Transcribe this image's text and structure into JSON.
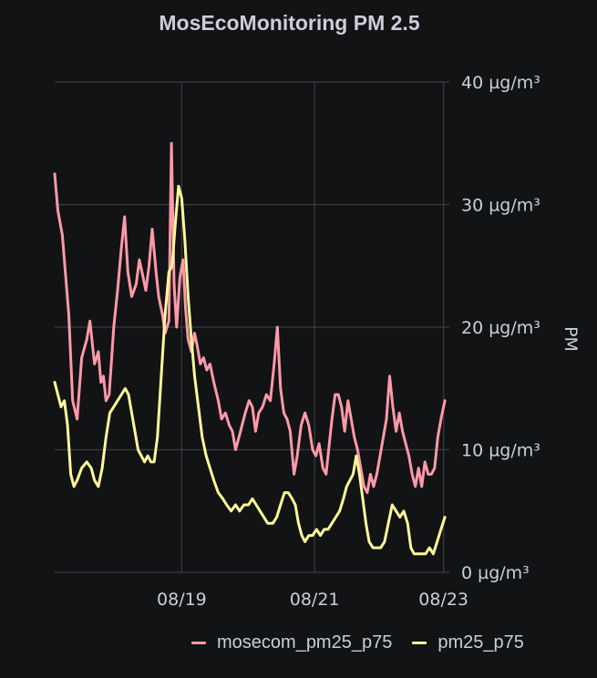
{
  "panel": {
    "title": "MosEcoMonitoring PM 2.5"
  },
  "chart_data": {
    "type": "line",
    "title": "MosEcoMonitoring PM 2.5",
    "xlabel": "",
    "ylabel": "PM",
    "ylim": [
      0,
      40
    ],
    "yunit": "µg/m³",
    "yticks": [
      "0 µg/m³",
      "10 µg/m³",
      "20 µg/m³",
      "30 µg/m³",
      "40 µg/m³"
    ],
    "xticks": [
      "08/19",
      "08/21",
      "08/23"
    ],
    "xrange_days": [
      "08/17",
      "08/23"
    ],
    "grid": true,
    "legend_position": "bottom-right",
    "series": [
      {
        "name": "mosecom_pm25_p75",
        "color": "#ff99a8",
        "points": [
          [
            0.0,
            32.5
          ],
          [
            0.05,
            29.5
          ],
          [
            0.12,
            27.5
          ],
          [
            0.22,
            21.0
          ],
          [
            0.28,
            14.0
          ],
          [
            0.35,
            12.5
          ],
          [
            0.42,
            17.5
          ],
          [
            0.5,
            19.0
          ],
          [
            0.55,
            20.5
          ],
          [
            0.62,
            17.0
          ],
          [
            0.68,
            18.0
          ],
          [
            0.72,
            15.5
          ],
          [
            0.76,
            16.0
          ],
          [
            0.8,
            14.0
          ],
          [
            0.85,
            14.5
          ],
          [
            0.92,
            20.0
          ],
          [
            0.98,
            23.0
          ],
          [
            1.04,
            26.5
          ],
          [
            1.09,
            29.0
          ],
          [
            1.14,
            24.5
          ],
          [
            1.2,
            22.5
          ],
          [
            1.27,
            23.5
          ],
          [
            1.32,
            25.5
          ],
          [
            1.38,
            24.0
          ],
          [
            1.42,
            23.0
          ],
          [
            1.47,
            25.0
          ],
          [
            1.52,
            28.0
          ],
          [
            1.58,
            24.5
          ],
          [
            1.62,
            22.5
          ],
          [
            1.68,
            21.0
          ],
          [
            1.72,
            19.5
          ],
          [
            1.78,
            20.5
          ],
          [
            1.82,
            35.0
          ],
          [
            1.86,
            23.5
          ],
          [
            1.9,
            20.0
          ],
          [
            1.95,
            24.0
          ],
          [
            2.0,
            25.5
          ],
          [
            2.04,
            21.5
          ],
          [
            2.08,
            19.0
          ],
          [
            2.13,
            18.0
          ],
          [
            2.18,
            19.5
          ],
          [
            2.22,
            18.5
          ],
          [
            2.27,
            17.0
          ],
          [
            2.32,
            17.5
          ],
          [
            2.37,
            16.5
          ],
          [
            2.42,
            17.0
          ],
          [
            2.48,
            15.5
          ],
          [
            2.55,
            14.0
          ],
          [
            2.6,
            12.5
          ],
          [
            2.66,
            13.0
          ],
          [
            2.72,
            12.0
          ],
          [
            2.77,
            11.5
          ],
          [
            2.82,
            10.0
          ],
          [
            2.87,
            11.0
          ],
          [
            2.92,
            12.0
          ],
          [
            2.97,
            13.0
          ],
          [
            3.03,
            14.0
          ],
          [
            3.08,
            13.5
          ],
          [
            3.13,
            11.5
          ],
          [
            3.18,
            13.0
          ],
          [
            3.24,
            13.5
          ],
          [
            3.3,
            14.5
          ],
          [
            3.36,
            14.0
          ],
          [
            3.42,
            17.0
          ],
          [
            3.47,
            20.0
          ],
          [
            3.52,
            15.0
          ],
          [
            3.57,
            13.0
          ],
          [
            3.62,
            12.5
          ],
          [
            3.67,
            11.5
          ],
          [
            3.73,
            8.0
          ],
          [
            3.78,
            9.5
          ],
          [
            3.84,
            12.0
          ],
          [
            3.9,
            13.0
          ],
          [
            3.96,
            12.0
          ],
          [
            4.02,
            10.0
          ],
          [
            4.07,
            9.5
          ],
          [
            4.12,
            10.5
          ],
          [
            4.18,
            8.5
          ],
          [
            4.23,
            8.0
          ],
          [
            4.27,
            10.0
          ],
          [
            4.32,
            12.5
          ],
          [
            4.37,
            14.5
          ],
          [
            4.42,
            14.5
          ],
          [
            4.47,
            13.5
          ],
          [
            4.52,
            11.5
          ],
          [
            4.57,
            14.0
          ],
          [
            4.62,
            12.5
          ],
          [
            4.67,
            11.0
          ],
          [
            4.72,
            10.0
          ],
          [
            4.77,
            8.5
          ],
          [
            4.82,
            7.0
          ],
          [
            4.87,
            6.5
          ],
          [
            4.92,
            8.0
          ],
          [
            4.97,
            7.0
          ],
          [
            5.02,
            8.0
          ],
          [
            5.07,
            9.5
          ],
          [
            5.12,
            11.0
          ],
          [
            5.17,
            12.5
          ],
          [
            5.22,
            16.0
          ],
          [
            5.27,
            13.5
          ],
          [
            5.32,
            11.5
          ],
          [
            5.37,
            13.0
          ],
          [
            5.42,
            11.5
          ],
          [
            5.47,
            10.5
          ],
          [
            5.52,
            9.5
          ],
          [
            5.57,
            8.0
          ],
          [
            5.62,
            7.0
          ],
          [
            5.67,
            8.5
          ],
          [
            5.72,
            7.0
          ],
          [
            5.77,
            9.0
          ],
          [
            5.82,
            8.0
          ],
          [
            5.87,
            8.0
          ],
          [
            5.92,
            8.5
          ],
          [
            5.97,
            11.0
          ],
          [
            6.02,
            12.5
          ],
          [
            6.08,
            14.0
          ]
        ]
      },
      {
        "name": "pm25_p75",
        "color": "#fff899",
        "points": [
          [
            0.0,
            15.5
          ],
          [
            0.05,
            14.5
          ],
          [
            0.1,
            13.5
          ],
          [
            0.15,
            14.0
          ],
          [
            0.2,
            12.0
          ],
          [
            0.25,
            8.0
          ],
          [
            0.3,
            7.0
          ],
          [
            0.35,
            7.5
          ],
          [
            0.42,
            8.5
          ],
          [
            0.5,
            9.0
          ],
          [
            0.57,
            8.5
          ],
          [
            0.62,
            7.5
          ],
          [
            0.68,
            7.0
          ],
          [
            0.74,
            8.5
          ],
          [
            0.8,
            11.0
          ],
          [
            0.86,
            13.0
          ],
          [
            0.92,
            13.5
          ],
          [
            0.98,
            14.0
          ],
          [
            1.04,
            14.5
          ],
          [
            1.1,
            15.0
          ],
          [
            1.15,
            14.5
          ],
          [
            1.2,
            13.0
          ],
          [
            1.25,
            11.5
          ],
          [
            1.3,
            10.0
          ],
          [
            1.35,
            9.5
          ],
          [
            1.4,
            9.0
          ],
          [
            1.45,
            9.5
          ],
          [
            1.5,
            9.0
          ],
          [
            1.55,
            9.0
          ],
          [
            1.6,
            11.0
          ],
          [
            1.66,
            16.0
          ],
          [
            1.72,
            21.0
          ],
          [
            1.78,
            24.5
          ],
          [
            1.83,
            25.0
          ],
          [
            1.88,
            28.5
          ],
          [
            1.93,
            31.5
          ],
          [
            1.98,
            30.5
          ],
          [
            2.03,
            27.0
          ],
          [
            2.08,
            22.5
          ],
          [
            2.13,
            19.0
          ],
          [
            2.18,
            16.0
          ],
          [
            2.24,
            13.5
          ],
          [
            2.3,
            11.0
          ],
          [
            2.36,
            9.5
          ],
          [
            2.42,
            8.5
          ],
          [
            2.48,
            7.5
          ],
          [
            2.55,
            6.5
          ],
          [
            2.62,
            6.0
          ],
          [
            2.68,
            5.5
          ],
          [
            2.75,
            5.0
          ],
          [
            2.82,
            5.5
          ],
          [
            2.88,
            5.0
          ],
          [
            2.95,
            5.5
          ],
          [
            3.02,
            5.5
          ],
          [
            3.08,
            6.0
          ],
          [
            3.14,
            5.5
          ],
          [
            3.2,
            5.0
          ],
          [
            3.26,
            4.5
          ],
          [
            3.32,
            4.0
          ],
          [
            3.4,
            4.0
          ],
          [
            3.46,
            4.5
          ],
          [
            3.52,
            5.5
          ],
          [
            3.58,
            6.5
          ],
          [
            3.64,
            6.5
          ],
          [
            3.7,
            6.0
          ],
          [
            3.75,
            5.5
          ],
          [
            3.8,
            4.0
          ],
          [
            3.85,
            3.0
          ],
          [
            3.9,
            2.5
          ],
          [
            3.96,
            3.0
          ],
          [
            4.02,
            3.0
          ],
          [
            4.08,
            3.5
          ],
          [
            4.14,
            3.0
          ],
          [
            4.2,
            3.5
          ],
          [
            4.26,
            3.5
          ],
          [
            4.32,
            4.0
          ],
          [
            4.38,
            4.5
          ],
          [
            4.44,
            5.0
          ],
          [
            4.5,
            6.0
          ],
          [
            4.55,
            7.0
          ],
          [
            4.6,
            7.5
          ],
          [
            4.65,
            8.0
          ],
          [
            4.7,
            9.5
          ],
          [
            4.75,
            8.0
          ],
          [
            4.8,
            6.0
          ],
          [
            4.85,
            4.0
          ],
          [
            4.9,
            2.5
          ],
          [
            4.96,
            2.0
          ],
          [
            5.02,
            2.0
          ],
          [
            5.08,
            2.0
          ],
          [
            5.14,
            2.5
          ],
          [
            5.2,
            4.0
          ],
          [
            5.26,
            5.5
          ],
          [
            5.32,
            5.0
          ],
          [
            5.38,
            4.5
          ],
          [
            5.44,
            5.0
          ],
          [
            5.5,
            4.0
          ],
          [
            5.55,
            2.0
          ],
          [
            5.6,
            1.5
          ],
          [
            5.66,
            1.5
          ],
          [
            5.72,
            1.5
          ],
          [
            5.78,
            1.5
          ],
          [
            5.84,
            2.0
          ],
          [
            5.9,
            1.5
          ],
          [
            5.96,
            2.5
          ],
          [
            6.02,
            3.5
          ],
          [
            6.08,
            4.5
          ]
        ]
      }
    ]
  }
}
